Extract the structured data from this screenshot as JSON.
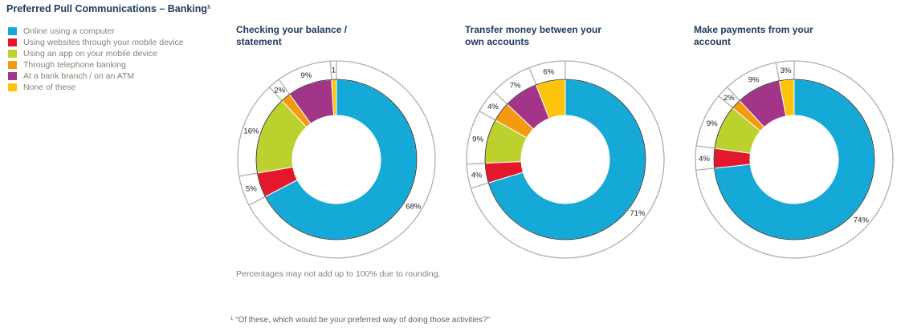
{
  "title": "Preferred Pull Communications – Banking¹",
  "colors": {
    "Online using a computer": "#14a9d6",
    "Using websites through your mobile device": "#e3182d",
    "Using an app on your mobile device": "#bcd02e",
    "Through telephone banking": "#f39a0e",
    "At a bank branch / on an ATM": "#a23587",
    "None of these": "#fdc30d"
  },
  "note": "Percentages may not add up to 100% due to rounding.",
  "footnote": "¹ “Of these, which would be your preferred way of doing those activities?”",
  "chart_data": [
    {
      "type": "pie",
      "title": "Checking your balance / statement",
      "legend_position": "left",
      "categories": [
        "Online using a computer",
        "Using websites through your mobile device",
        "Using an app on your mobile device",
        "Through telephone banking",
        "At a bank branch / on an ATM",
        "None of these"
      ],
      "values": [
        68,
        5,
        16,
        2,
        9,
        1
      ],
      "labels": [
        "68%",
        "5%",
        "16%",
        "2%",
        "9%",
        "1"
      ]
    },
    {
      "type": "pie",
      "title": "Transfer money between your own accounts",
      "legend_position": "left",
      "categories": [
        "Online using a computer",
        "Using websites through your mobile device",
        "Using an app on your mobile device",
        "Through telephone banking",
        "At a bank branch / on an ATM",
        "None of these"
      ],
      "values": [
        71,
        4,
        9,
        4,
        7,
        6
      ],
      "labels": [
        "71%",
        "4%",
        "9%",
        "4%",
        "7%",
        "6%"
      ]
    },
    {
      "type": "pie",
      "title": "Make payments from your account",
      "legend_position": "left",
      "categories": [
        "Online using a computer",
        "Using websites through your mobile device",
        "Using an app on your mobile device",
        "Through telephone banking",
        "At a bank branch / on an ATM",
        "None of these"
      ],
      "values": [
        74,
        4,
        9,
        2,
        9,
        3
      ],
      "labels": [
        "74%",
        "4%",
        "9%",
        "2%",
        "9%",
        "3%"
      ]
    }
  ]
}
